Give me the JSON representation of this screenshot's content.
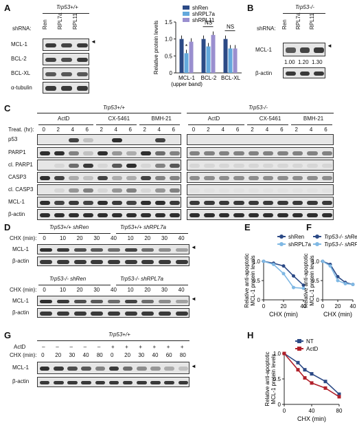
{
  "panels": {
    "A": "A",
    "B": "B",
    "C": "C",
    "D": "D",
    "E": "E",
    "F": "F",
    "G": "G",
    "H": "H"
  },
  "genotypes": {
    "wt": "Trp53+/+",
    "ko": "Trp53-/-"
  },
  "A": {
    "shrna_label": "shRNA:",
    "lanes": [
      "Ren",
      "RPL7a",
      "RPL11"
    ],
    "rows": [
      "MCL-1",
      "BCL-2",
      "BCL-XL",
      "α-tubulin"
    ]
  },
  "B": {
    "shrna_label": "shRNA:",
    "lanes": [
      "Ren",
      "RPL7a",
      "RPL11"
    ],
    "rows": [
      "MCL-1",
      "β-actin"
    ],
    "quant": [
      "1.00",
      "1.20",
      "1.30"
    ]
  },
  "C": {
    "treat_label": "Treat. (hr):",
    "drugs": [
      "ActD",
      "CX-5461",
      "BMH-21"
    ],
    "times": [
      "0",
      "2",
      "4",
      "6",
      "2",
      "4",
      "6",
      "2",
      "4",
      "6"
    ],
    "rows": [
      "p53",
      "PARP1",
      "cl. PARP1",
      "CASP3",
      "cl. CASP3",
      "MCL-1",
      "β-actin"
    ]
  },
  "D": {
    "cond_wt": [
      "Trp53+/+ shRen",
      "Trp53+/+ shRPL7a"
    ],
    "cond_ko": [
      "Trp53-/- shRen",
      "Trp53-/- shRPL7a"
    ],
    "chx_label": "CHX (min):",
    "times": [
      "0",
      "10",
      "20",
      "30",
      "40",
      "10",
      "20",
      "30",
      "40"
    ],
    "rows": [
      "MCL-1",
      "β-actin"
    ]
  },
  "G": {
    "genotype": "Trp53+/+",
    "actd_label": "ActD",
    "chx_label": "CHX (min):",
    "actd": [
      "–",
      "–",
      "–",
      "–",
      "–",
      "+",
      "+",
      "+",
      "+",
      "+",
      "+"
    ],
    "chx": [
      "0",
      "20",
      "30",
      "40",
      "80",
      "0",
      "20",
      "30",
      "40",
      "60",
      "80"
    ],
    "rows": [
      "MCL-1",
      "β-actin"
    ]
  },
  "chart_data": [
    {
      "panel": "A",
      "type": "bar",
      "categories": [
        "MCL-1\n(upper band)",
        "BCL-2",
        "BCL-XL"
      ],
      "series": [
        {
          "name": "shRen",
          "color": "#2c4a86",
          "values": [
            1.0,
            1.0,
            1.0
          ]
        },
        {
          "name": "shRPL7a",
          "color": "#63a8dc",
          "values": [
            0.58,
            0.78,
            0.72
          ]
        },
        {
          "name": "shRPL11",
          "color": "#9a8fcf",
          "values": [
            0.92,
            1.12,
            0.72
          ]
        }
      ],
      "annotations": [
        "*",
        "NS",
        "NS"
      ],
      "ylabel": "Relative protein levels",
      "ylim": [
        0,
        1.5
      ],
      "yticks": [
        "0",
        "0.5",
        "1.0",
        "1.5"
      ]
    },
    {
      "panel": "E",
      "type": "line",
      "x": [
        0,
        10,
        20,
        30,
        40
      ],
      "series": [
        {
          "name": "shRen",
          "color": "#2c4a86",
          "values": [
            1.0,
            0.95,
            0.88,
            0.62,
            0.38
          ]
        },
        {
          "name": "shRPL7a",
          "color": "#7fb8e4",
          "values": [
            1.0,
            0.92,
            0.68,
            0.32,
            0.3
          ]
        }
      ],
      "xlabel": "CHX (min)",
      "ylabel": "Relative anti-apoptotic MCL-1 protein levels",
      "ylim": [
        0,
        1.0
      ],
      "yticks": [
        "0",
        "0.5",
        "1.0"
      ],
      "xticks": [
        "0",
        "20",
        "40"
      ]
    },
    {
      "panel": "F",
      "type": "line",
      "x": [
        0,
        10,
        20,
        30,
        40
      ],
      "series": [
        {
          "name": "Trp53-/- shRen",
          "color": "#2c4a86",
          "values": [
            1.0,
            0.92,
            0.6,
            0.45,
            0.4
          ]
        },
        {
          "name": "Trp53-/- shRPL7a",
          "color": "#7fb8e4",
          "values": [
            1.0,
            0.88,
            0.5,
            0.42,
            0.4
          ]
        }
      ],
      "xlabel": "CHX (min)",
      "ylabel": "Relative anti-apoptotic MCL-1 protein levels",
      "ylim": [
        0,
        1.0
      ],
      "yticks": [
        "0",
        "0.5",
        "1.0"
      ],
      "xticks": [
        "0",
        "20",
        "40"
      ]
    },
    {
      "panel": "H",
      "type": "line",
      "x": [
        0,
        20,
        30,
        40,
        60,
        80
      ],
      "series": [
        {
          "name": "NT",
          "color": "#2c4a86",
          "values": [
            1.0,
            0.82,
            0.68,
            0.6,
            0.45,
            0.2
          ]
        },
        {
          "name": "ActD",
          "color": "#b1202a",
          "values": [
            1.0,
            0.68,
            0.52,
            0.42,
            0.32,
            0.15
          ]
        }
      ],
      "xlabel": "CHX (min)",
      "ylabel": "Relative anti-apoptotic MCL-1 protein levels",
      "ylim": [
        0,
        1.0
      ],
      "yticks": [
        "0",
        "0.5",
        "1.0"
      ],
      "xticks": [
        "0",
        "40",
        "80"
      ]
    }
  ]
}
